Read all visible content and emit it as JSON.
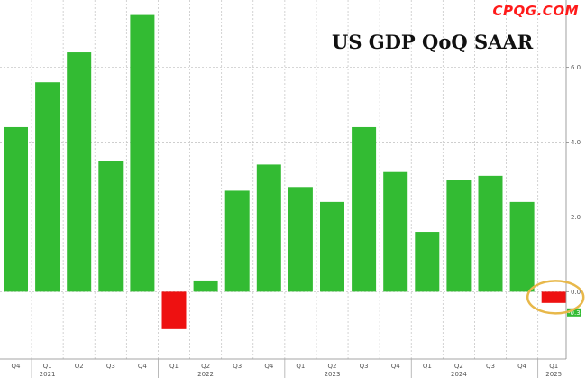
{
  "watermark": "CPQG.COM",
  "chart_data": {
    "type": "bar",
    "title": "US GDP QoQ SAAR",
    "categories": [
      "Q4",
      "Q1",
      "Q2",
      "Q3",
      "Q4",
      "Q1",
      "Q2",
      "Q3",
      "Q4",
      "Q1",
      "Q2",
      "Q3",
      "Q4",
      "Q1",
      "Q2",
      "Q3",
      "Q4",
      "Q1"
    ],
    "year_labels": [
      {
        "label": "2021",
        "index": 1
      },
      {
        "label": "2022",
        "index": 6
      },
      {
        "label": "2023",
        "index": 10
      },
      {
        "label": "2024",
        "index": 14
      },
      {
        "label": "2025",
        "index": 17
      }
    ],
    "values": [
      4.4,
      5.6,
      6.4,
      3.5,
      7.4,
      -1.0,
      0.3,
      2.7,
      3.4,
      2.8,
      2.4,
      4.4,
      3.2,
      1.6,
      3.0,
      3.1,
      2.4,
      -0.3
    ],
    "ylim": [
      -1.8,
      7.8
    ],
    "yticks": [
      0.0,
      2.0,
      4.0,
      6.0
    ],
    "ytick_labels": [
      "0.0",
      "2.0",
      "4.0",
      "6.0"
    ],
    "last_value_label": "-0.3",
    "colors": {
      "positive": "#33bb33",
      "negative": "#ee1111",
      "highlight_circle": "#e8b84a"
    },
    "grid": true,
    "xlabel": "",
    "ylabel": ""
  }
}
